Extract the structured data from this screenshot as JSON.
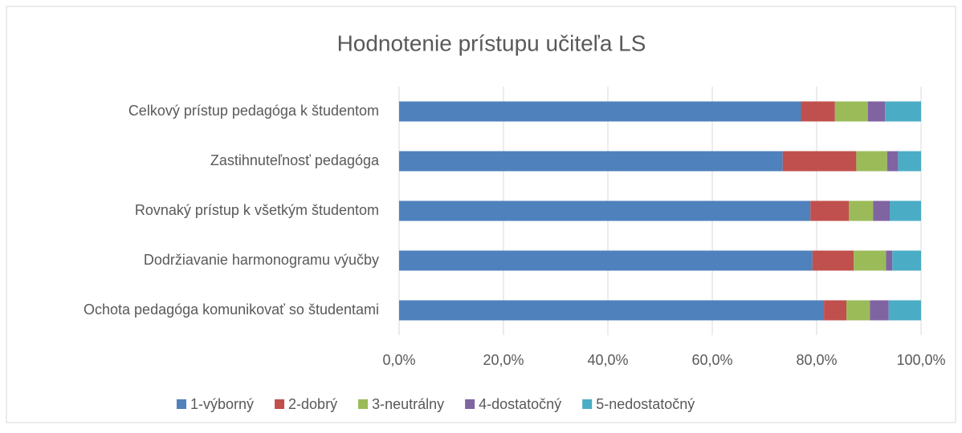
{
  "chart_data": {
    "type": "stacked_barh",
    "title": "Hodnotenie prístupu učiteľa LS",
    "categories": [
      "Celkový prístup pedagóga k študentom",
      "Zastihnuteľnosť pedagóga",
      "Rovnaký prístup k všetkým študentom",
      "Dodržiavanie harmonogramu výučby",
      "Ochota pedagóga komunikovať so študentami"
    ],
    "series": [
      {
        "name": "1-výborný",
        "color": "#4f81bd",
        "values": [
          77.0,
          73.5,
          78.8,
          79.2,
          81.4
        ]
      },
      {
        "name": "2-dobrý",
        "color": "#c0504d",
        "values": [
          6.5,
          14.1,
          7.4,
          7.9,
          4.3
        ]
      },
      {
        "name": "3-neutrálny",
        "color": "#9bbb59",
        "values": [
          6.3,
          5.9,
          4.6,
          6.2,
          4.5
        ]
      },
      {
        "name": "4-dostatočný",
        "color": "#8064a2",
        "values": [
          3.3,
          2.1,
          3.2,
          1.2,
          3.6
        ]
      },
      {
        "name": "5-nedostatočný",
        "color": "#4bacc6",
        "values": [
          6.9,
          4.4,
          6.0,
          5.5,
          6.2
        ]
      }
    ],
    "xlim": [
      0,
      100
    ],
    "xticks": [
      {
        "value": 0,
        "label": "0,0%"
      },
      {
        "value": 20,
        "label": "20,0%"
      },
      {
        "value": 40,
        "label": "40,0%"
      },
      {
        "value": 60,
        "label": "60,0%"
      },
      {
        "value": 80,
        "label": "80,0%"
      },
      {
        "value": 100,
        "label": "100,0%"
      }
    ],
    "grid": true,
    "legend": "bottom"
  }
}
